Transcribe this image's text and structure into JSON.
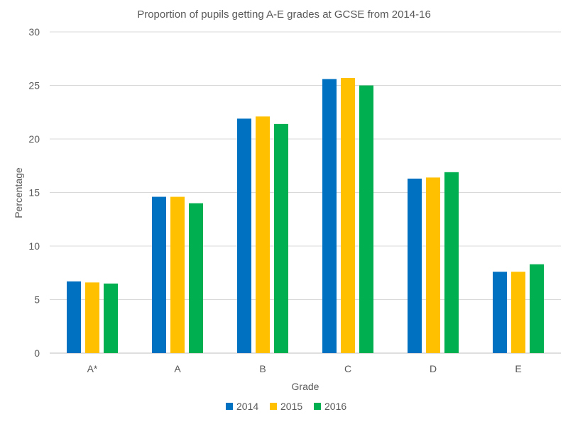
{
  "chart_data": {
    "type": "bar",
    "title": "Proportion of pupils getting A-E grades at GCSE from 2014-16",
    "xlabel": "Grade",
    "ylabel": "Percentage",
    "ylim": [
      0,
      30
    ],
    "yticks": [
      "0",
      "5",
      "10",
      "15",
      "20",
      "25",
      "30"
    ],
    "categories": [
      "A*",
      "A",
      "B",
      "C",
      "D",
      "E"
    ],
    "series": [
      {
        "name": "2014",
        "color": "#0070C0",
        "values": [
          6.7,
          14.6,
          21.9,
          25.6,
          16.3,
          7.6
        ]
      },
      {
        "name": "2015",
        "color": "#FFC000",
        "values": [
          6.6,
          14.6,
          22.1,
          25.7,
          16.4,
          7.6
        ]
      },
      {
        "name": "2016",
        "color": "#00B050",
        "values": [
          6.5,
          14.0,
          21.4,
          25.0,
          16.9,
          8.3
        ]
      }
    ],
    "grid": true,
    "legend_position": "bottom"
  }
}
